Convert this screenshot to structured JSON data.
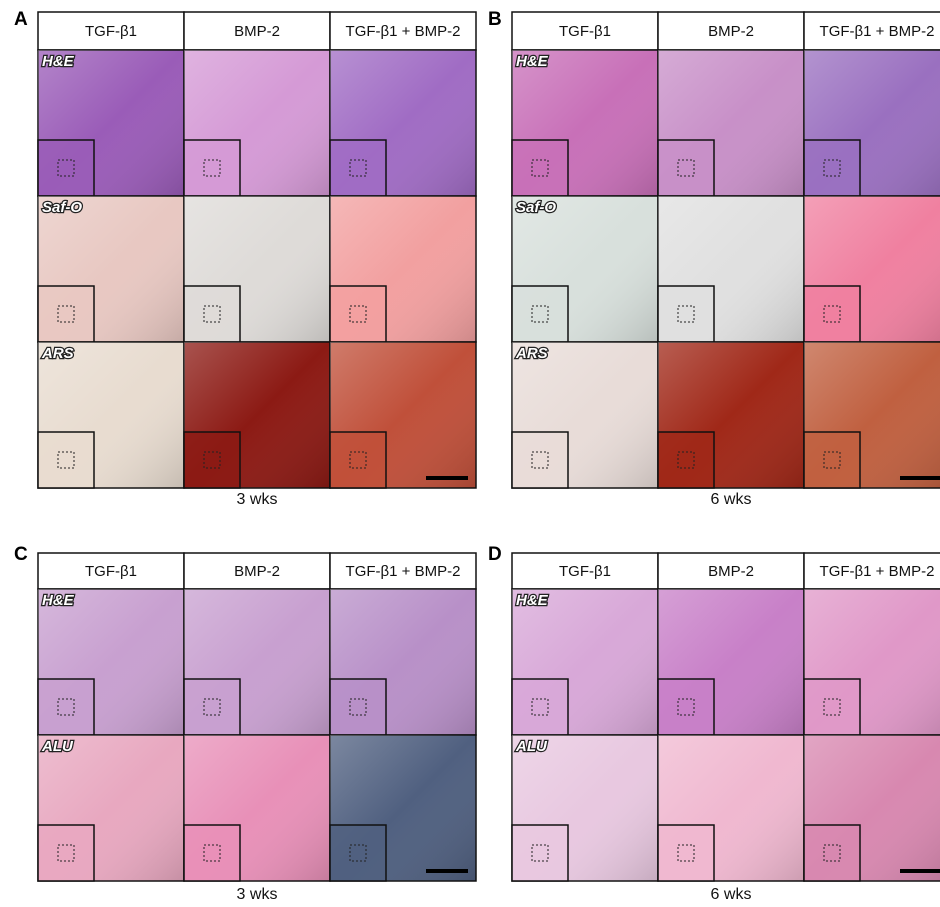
{
  "panels": [
    {
      "letter": "A",
      "columns": [
        "TGF-β1",
        "BMP-2",
        "TGF-β1 + BMP-2"
      ],
      "rows": [
        "H&E",
        "Saf-O",
        "ARS"
      ],
      "caption": "3 wks"
    },
    {
      "letter": "B",
      "columns": [
        "TGF-β1",
        "BMP-2",
        "TGF-β1 + BMP-2"
      ],
      "rows": [
        "H&E",
        "Saf-O",
        "ARS"
      ],
      "caption": "6 wks"
    },
    {
      "letter": "C",
      "columns": [
        "TGF-β1",
        "BMP-2",
        "TGF-β1 + BMP-2"
      ],
      "rows": [
        "H&E",
        "ALU"
      ],
      "caption": "3 wks"
    },
    {
      "letter": "D",
      "columns": [
        "TGF-β1",
        "BMP-2",
        "TGF-β1 + BMP-2"
      ],
      "rows": [
        "H&E",
        "ALU"
      ],
      "caption": "6 wks"
    }
  ]
}
